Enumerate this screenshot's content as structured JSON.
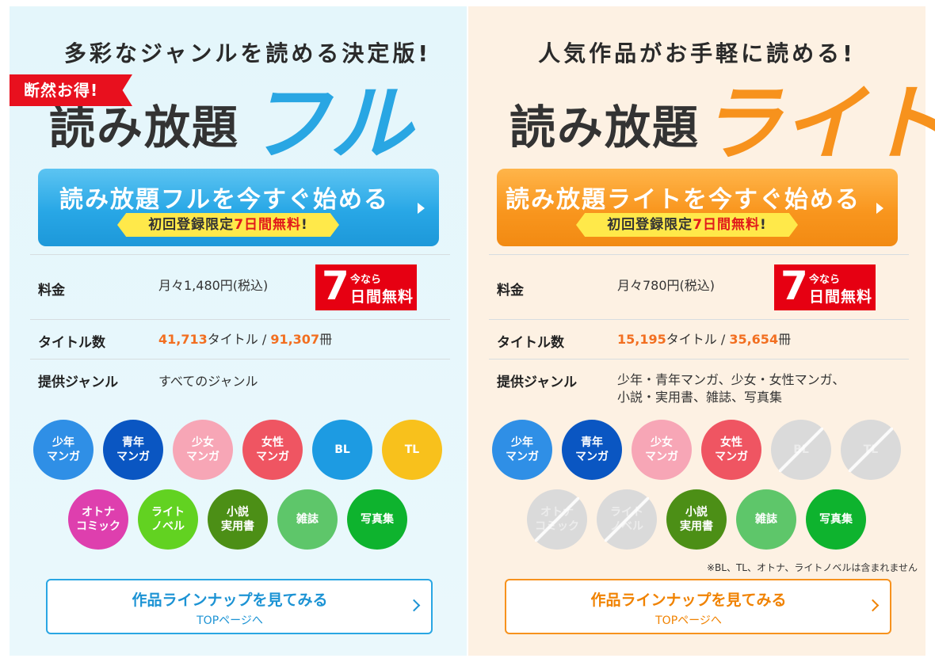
{
  "full": {
    "tagline": "多彩なジャンルを読める決定版!",
    "ribbon": "断然お得!",
    "title_main": "読み放題",
    "title_accent": "フル",
    "cta_title": "読み放題フルを今すぐ始める",
    "cta_sub_prefix": "初回登録限定",
    "cta_sub_days": "7日間無料",
    "cta_sub_suffix": "!",
    "price_label": "料金",
    "price_value": "月々1,480円(税込)",
    "badge_big": "7",
    "badge_small": "今なら",
    "badge_text": "日間無料",
    "titles_label": "タイトル数",
    "titles_count": "41,713",
    "titles_unit": "タイトル / ",
    "books_count": "91,307",
    "books_unit": "冊",
    "genre_label": "提供ジャンル",
    "genre_value": "すべてのジャンル",
    "lineup_title": "作品ラインナップを見てみる",
    "lineup_sub": "TOPページへ",
    "genres": [
      {
        "label": "少年\nマンガ",
        "color": "#2f8fe6",
        "enabled": true
      },
      {
        "label": "青年\nマンガ",
        "color": "#0a56c2",
        "enabled": true
      },
      {
        "label": "少女\nマンガ",
        "color": "#f7a6b6",
        "enabled": true
      },
      {
        "label": "女性\nマンガ",
        "color": "#ef5562",
        "enabled": true
      },
      {
        "label": "BL",
        "color": "#1d9be2",
        "enabled": true
      },
      {
        "label": "TL",
        "color": "#f8c11c",
        "enabled": true
      },
      {
        "label": "オトナ\nコミック",
        "color": "#de3fae",
        "enabled": true
      },
      {
        "label": "ライト\nノベル",
        "color": "#62d221",
        "enabled": true
      },
      {
        "label": "小説\n実用書",
        "color": "#4c8f16",
        "enabled": true
      },
      {
        "label": "雑誌",
        "color": "#5ec66a",
        "enabled": true
      },
      {
        "label": "写真集",
        "color": "#0eb32e",
        "enabled": true
      }
    ]
  },
  "lite": {
    "tagline": "人気作品がお手軽に読める!",
    "title_main": "読み放題",
    "title_accent": "ライト",
    "cta_title": "読み放題ライトを今すぐ始める",
    "cta_sub_prefix": "初回登録限定",
    "cta_sub_days": "7日間無料",
    "cta_sub_suffix": "!",
    "price_label": "料金",
    "price_value": "月々780円(税込)",
    "badge_big": "7",
    "badge_small": "今なら",
    "badge_text": "日間無料",
    "titles_label": "タイトル数",
    "titles_count": "15,195",
    "titles_unit": "タイトル / ",
    "books_count": "35,654",
    "books_unit": "冊",
    "genre_label": "提供ジャンル",
    "genre_value_1": "少年・青年マンガ、少女・女性マンガ、",
    "genre_value_2": "小説・実用書、雑誌、写真集",
    "note": "※BL、TL、オトナ、ライトノベルは含まれません",
    "lineup_title": "作品ラインナップを見てみる",
    "lineup_sub": "TOPページへ",
    "genres": [
      {
        "label": "少年\nマンガ",
        "color": "#2f8fe6",
        "enabled": true
      },
      {
        "label": "青年\nマンガ",
        "color": "#0a56c2",
        "enabled": true
      },
      {
        "label": "少女\nマンガ",
        "color": "#f7a6b6",
        "enabled": true
      },
      {
        "label": "女性\nマンガ",
        "color": "#ef5562",
        "enabled": true
      },
      {
        "label": "BL",
        "color": "#1d9be2",
        "enabled": false
      },
      {
        "label": "TL",
        "color": "#f8c11c",
        "enabled": false
      },
      {
        "label": "オトナ\nコミック",
        "color": "#de3fae",
        "enabled": false
      },
      {
        "label": "ライト\nノベル",
        "color": "#62d221",
        "enabled": false
      },
      {
        "label": "小説\n実用書",
        "color": "#4c8f16",
        "enabled": true
      },
      {
        "label": "雑誌",
        "color": "#5ec66a",
        "enabled": true
      },
      {
        "label": "写真集",
        "color": "#0eb32e",
        "enabled": true
      }
    ]
  }
}
